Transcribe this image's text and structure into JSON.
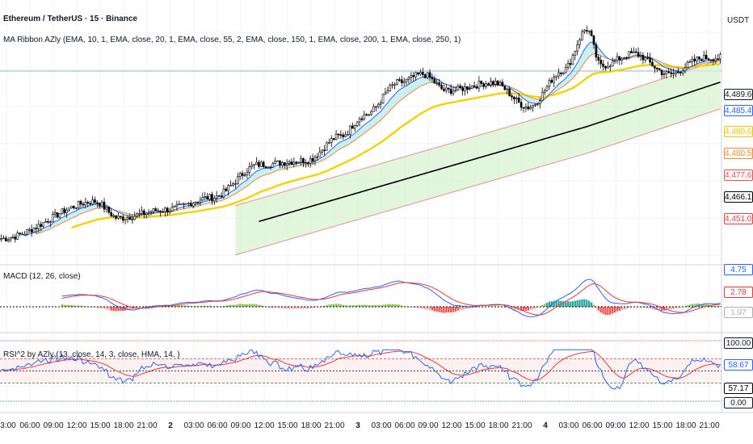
{
  "header": {
    "symbol_title": "Ethereum / TetherUS · 15 · Binance",
    "ribbon_legend": "MA Ribbon AZly (EMA, 10, 1, EMA, close, 20, 1, EMA, close, 55, 2, EMA, close, 150, 1, EMA, close, 200, 1, EMA, close, 250, 1)",
    "currency": "USDT"
  },
  "price_axis_labels": [
    {
      "value": "4,489.60",
      "role": "last-price",
      "color": "#131722"
    },
    {
      "value": "4,485.41",
      "role": "ema-10",
      "color": "#2962ff"
    },
    {
      "value": "4,480.69",
      "role": "ema-20",
      "color": "#f2c200"
    },
    {
      "value": "4,480.57",
      "role": "ema-55",
      "color": "#ef8a30"
    },
    {
      "value": "4,477.65",
      "role": "ema-150",
      "color": "#e05050"
    },
    {
      "value": "4,466.16",
      "role": "ema-200",
      "color": "#000000"
    },
    {
      "value": "4,451.09",
      "role": "ema-250",
      "color": "#e04040"
    }
  ],
  "macd": {
    "legend": "MACD (12, 26, close)",
    "labels": [
      {
        "value": "4.75",
        "color": "#2962ff"
      },
      {
        "value": "2.78",
        "color": "#e53935"
      },
      {
        "value": "1.97",
        "color": "#b0b0b0"
      }
    ]
  },
  "rsi": {
    "legend": "RSI^2 by AZly (13, close, 14, 3, close, HMA, 14, )",
    "labels": [
      {
        "value": "100.00",
        "color": "#131722"
      },
      {
        "value": "58.67",
        "color": "#2962ff"
      },
      {
        "value": "57.17",
        "color": "#000000"
      },
      {
        "value": "0.00",
        "color": "#131722"
      }
    ]
  },
  "time_axis": [
    "3:00",
    "06:00",
    "09:00",
    "12:00",
    "15:00",
    "18:00",
    "21:00",
    "2",
    "03:00",
    "06:00",
    "09:00",
    "12:00",
    "15:00",
    "18:00",
    "21:00",
    "3",
    "03:00",
    "06:00",
    "09:00",
    "12:00",
    "15:00",
    "18:00",
    "21:00",
    "4",
    "03:00",
    "06:00",
    "09:00",
    "12:00",
    "15:00",
    "18:00",
    "21:00"
  ],
  "chart_data": {
    "type": "candlestick",
    "title": "Ethereum / TetherUS · 15 · Binance",
    "x_tick_labels": [
      "3:00",
      "06:00",
      "09:00",
      "12:00",
      "15:00",
      "18:00",
      "21:00",
      "2",
      "03:00",
      "06:00",
      "09:00",
      "12:00",
      "15:00",
      "18:00",
      "21:00",
      "3",
      "03:00",
      "06:00",
      "09:00",
      "12:00",
      "15:00",
      "18:00",
      "21:00",
      "4",
      "03:00",
      "06:00",
      "09:00",
      "12:00",
      "15:00",
      "18:00",
      "21:00"
    ],
    "y_unit": "USDT",
    "ylim_approx": [
      4390,
      4515
    ],
    "price_keyframes": [
      {
        "x": 0,
        "p": 4402
      },
      {
        "x": 4,
        "p": 4420
      },
      {
        "x": 5,
        "p": 4412
      },
      {
        "x": 7,
        "p": 4416
      },
      {
        "x": 9,
        "p": 4422
      },
      {
        "x": 11,
        "p": 4438
      },
      {
        "x": 13,
        "p": 4440
      },
      {
        "x": 14.5,
        "p": 4452
      },
      {
        "x": 15.5,
        "p": 4462
      },
      {
        "x": 17,
        "p": 4478
      },
      {
        "x": 18,
        "p": 4482
      },
      {
        "x": 19,
        "p": 4474
      },
      {
        "x": 21,
        "p": 4478
      },
      {
        "x": 22.5,
        "p": 4466
      },
      {
        "x": 24,
        "p": 4484
      },
      {
        "x": 25,
        "p": 4504
      },
      {
        "x": 25.6,
        "p": 4486
      },
      {
        "x": 27,
        "p": 4492
      },
      {
        "x": 28.5,
        "p": 4482
      },
      {
        "x": 30,
        "p": 4490
      }
    ],
    "series": [
      {
        "name": "EMA 10",
        "color": "#2962ff",
        "last": 4485.41
      },
      {
        "name": "EMA 20",
        "color": "#f2c200",
        "last": 4480.69
      },
      {
        "name": "EMA 55",
        "color": "#ef8a30",
        "last": 4480.57
      },
      {
        "name": "EMA 150",
        "color": "#e05050",
        "last": 4477.65
      },
      {
        "name": "EMA 200",
        "color": "#000000",
        "last": 4466.16
      },
      {
        "name": "EMA 250",
        "color": "#e04040",
        "last": 4451.09
      }
    ],
    "macd": {
      "legend": "MACD (12, 26, close)",
      "macd_last": 4.75,
      "signal_last": 2.78,
      "hist_last": 1.97
    },
    "rsi": {
      "legend": "RSI^2 by AZly (13, close, 14, 3, close, HMA, 14, )",
      "ylim": [
        0,
        100
      ],
      "rsi_last": 58.67,
      "signal_last": 57.17
    },
    "colors": {
      "up": "#26a69a",
      "down": "#ef5350",
      "candle": "#000000",
      "grid": "#f0f3fa"
    }
  }
}
